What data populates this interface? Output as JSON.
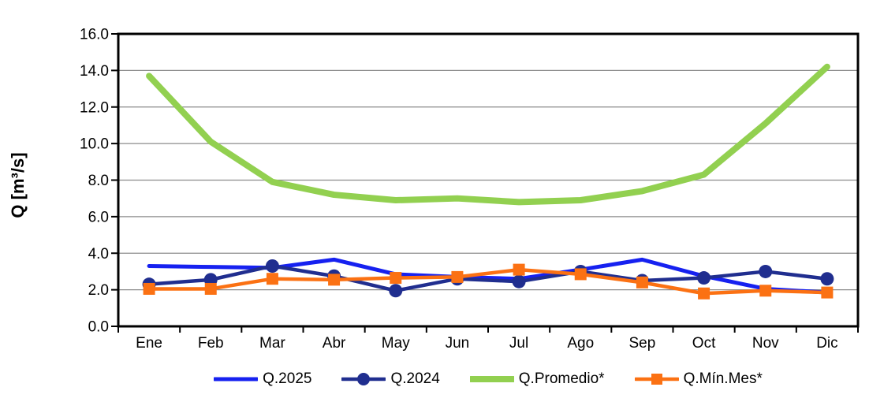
{
  "page": {
    "background": "#FFFFFF"
  },
  "chart_data": {
    "type": "line",
    "title": "",
    "ylabel": "Q [m³/s]",
    "xlabel": "",
    "categories": [
      "Ene",
      "Feb",
      "Mar",
      "Abr",
      "May",
      "Jun",
      "Jul",
      "Ago",
      "Sep",
      "Oct",
      "Nov",
      "Dic"
    ],
    "ylim": [
      0,
      16
    ],
    "ytick_step": 2,
    "ytick_labels": [
      "0.0",
      "2.0",
      "4.0",
      "6.0",
      "8.0",
      "10.0",
      "12.0",
      "14.0",
      "16.0"
    ],
    "grid": "horizontal",
    "gridline_color": "#8C8C8C",
    "frame_color": "#000000",
    "legend_position": "bottom",
    "series": [
      {
        "name": "Q.2025",
        "color": "#1621F0",
        "marker": "none",
        "values": [
          3.3,
          3.25,
          3.2,
          3.65,
          2.85,
          2.7,
          2.6,
          3.1,
          3.65,
          2.75,
          2.05,
          1.85
        ]
      },
      {
        "name": "Q.2024",
        "color": "#202E8F",
        "marker": "circle",
        "values": [
          2.3,
          2.55,
          3.3,
          2.75,
          1.95,
          2.6,
          2.45,
          3.0,
          2.5,
          2.65,
          3.0,
          2.6
        ]
      },
      {
        "name": "Q.Promedio*",
        "color": "#92D050",
        "marker": "none",
        "values": [
          13.7,
          10.1,
          7.9,
          7.2,
          6.9,
          7.0,
          6.8,
          6.9,
          7.4,
          8.3,
          11.1,
          14.2
        ]
      },
      {
        "name": "Q.Mín.Mes*",
        "color": "#FB7113",
        "marker": "square",
        "values": [
          2.05,
          2.05,
          2.6,
          2.55,
          2.65,
          2.7,
          3.1,
          2.85,
          2.4,
          1.8,
          1.95,
          1.85
        ]
      }
    ]
  }
}
